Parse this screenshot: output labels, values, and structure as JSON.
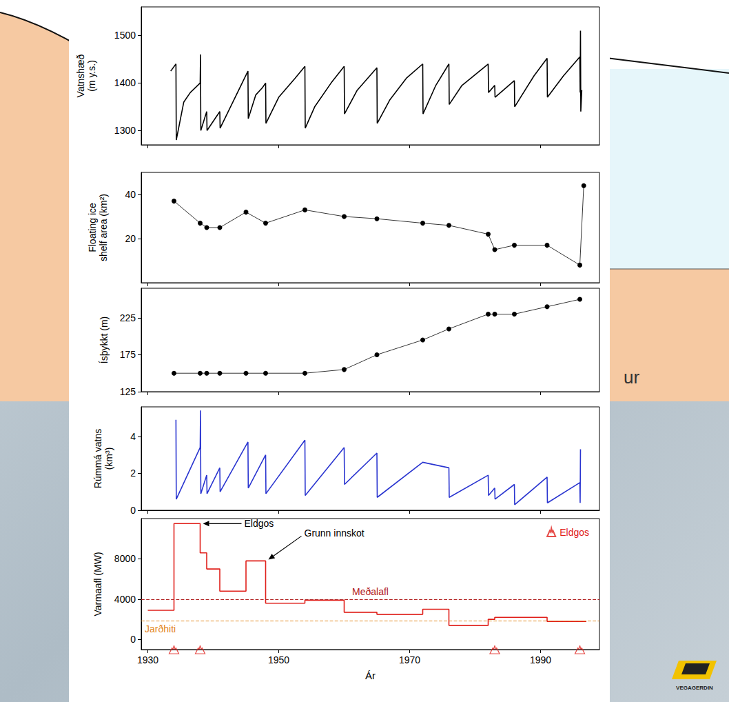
{
  "chart_data": [
    {
      "type": "line",
      "y_label": "Vatnshæð (m y.s.)",
      "xlim": [
        1929,
        1999
      ],
      "xticks": [
        1930,
        1950,
        1970,
        1990
      ],
      "ylim": [
        1270,
        1560
      ],
      "yticks": [
        1300,
        1400,
        1500
      ],
      "grid": false,
      "tick_labels": "y",
      "series": [
        {
          "color": "#000000",
          "marker": "none",
          "x": [
            1933.5,
            1934.3,
            1934.35,
            1935.5,
            1936.5,
            1938.0,
            1938.05,
            1938.1,
            1939.0,
            1939.05,
            1941.0,
            1941.05,
            1945.3,
            1945.35,
            1946.5,
            1947.5,
            1948.0,
            1948.05,
            1950.0,
            1952.5,
            1954.0,
            1954.05,
            1955.5,
            1958,
            1960.0,
            1960.05,
            1962,
            1965.0,
            1965.05,
            1967,
            1969.5,
            1972.0,
            1972.05,
            1974,
            1976.0,
            1976.05,
            1978,
            1982.0,
            1982.05,
            1983.0,
            1983.05,
            1986.0,
            1986.05,
            1989,
            1991.0,
            1991.05,
            1993.5,
            1996.0,
            1996.05,
            1996.1,
            1996.15,
            1996.3
          ],
          "values": [
            1425,
            1440,
            1280,
            1360,
            1380,
            1400,
            1460,
            1300,
            1340,
            1300,
            1340,
            1305,
            1425,
            1325,
            1375,
            1390,
            1400,
            1315,
            1370,
            1410,
            1435,
            1305,
            1350,
            1400,
            1435,
            1335,
            1385,
            1432,
            1315,
            1365,
            1410,
            1440,
            1335,
            1395,
            1440,
            1355,
            1395,
            1440,
            1380,
            1395,
            1370,
            1405,
            1350,
            1415,
            1452,
            1370,
            1415,
            1455,
            1380,
            1510,
            1340,
            1385
          ]
        }
      ]
    },
    {
      "type": "line",
      "y_label": "Floating ice shelf area (km²)",
      "xlim": [
        1929,
        1999
      ],
      "xticks": [
        1930,
        1950,
        1970,
        1990
      ],
      "ylim": [
        0,
        50
      ],
      "yticks": [
        20,
        40
      ],
      "grid": false,
      "tick_labels": "y",
      "series": [
        {
          "color": "#000000",
          "marker": "circle",
          "x": [
            1934,
            1938,
            1939,
            1941,
            1945,
            1948,
            1954,
            1960,
            1965,
            1972,
            1976,
            1982,
            1983,
            1986,
            1991,
            1996,
            1996.6
          ],
          "values": [
            37,
            27,
            25,
            25,
            32,
            27,
            33,
            30,
            29,
            27,
            26,
            22,
            15,
            17,
            17,
            8,
            44
          ]
        }
      ]
    },
    {
      "type": "line",
      "y_label": "Ísþykkt (m)",
      "xlim": [
        1929,
        1999
      ],
      "xticks": [
        1930,
        1950,
        1970,
        1990
      ],
      "ylim": [
        125,
        265
      ],
      "yticks": [
        125,
        175,
        225
      ],
      "grid": false,
      "tick_labels": "y",
      "series": [
        {
          "color": "#000000",
          "marker": "circle",
          "x": [
            1934,
            1938,
            1939,
            1941,
            1945,
            1948,
            1954,
            1960,
            1965,
            1972,
            1976,
            1982,
            1983,
            1986,
            1991,
            1996
          ],
          "values": [
            150,
            150,
            150,
            150,
            150,
            150,
            150,
            155,
            175,
            195,
            210,
            230,
            230,
            230,
            240,
            250
          ]
        }
      ]
    },
    {
      "type": "line",
      "y_label": "Rúmmá vatns (km³)",
      "xlim": [
        1929,
        1999
      ],
      "xticks": [
        1930,
        1950,
        1970,
        1990
      ],
      "ylim": [
        0,
        5.6
      ],
      "yticks": [
        0,
        2,
        4
      ],
      "grid": false,
      "tick_labels": "y",
      "series": [
        {
          "color": "#2a35d0",
          "marker": "none",
          "x": [
            1934.3,
            1934.35,
            1938.0,
            1938.05,
            1938.1,
            1939.0,
            1939.05,
            1941.0,
            1941.05,
            1945.3,
            1945.35,
            1948.0,
            1948.05,
            1954.0,
            1954.05,
            1960.0,
            1960.05,
            1965.0,
            1965.05,
            1972.0,
            1976.0,
            1976.05,
            1982.0,
            1982.05,
            1983.0,
            1983.05,
            1986.0,
            1986.05,
            1991.0,
            1991.05,
            1996.0,
            1996.05,
            1996.1
          ],
          "values": [
            4.9,
            0.6,
            3.4,
            5.4,
            0.9,
            1.9,
            0.9,
            2.3,
            1.0,
            3.7,
            1.2,
            3.0,
            0.9,
            3.8,
            0.8,
            3.4,
            1.4,
            3.1,
            0.7,
            2.6,
            2.3,
            0.7,
            1.9,
            0.8,
            1.2,
            0.6,
            1.4,
            0.3,
            1.8,
            0.4,
            1.5,
            0.4,
            3.3
          ]
        }
      ]
    },
    {
      "type": "line",
      "y_label": "Varmaafl (MW)",
      "x_label": "Ár",
      "xlim": [
        1929,
        1999
      ],
      "xticks": [
        1930,
        1950,
        1970,
        1990
      ],
      "ylim": [
        -1000,
        12000
      ],
      "yticks": [
        0,
        4000,
        8000
      ],
      "grid": false,
      "legend": "upper right",
      "series": [
        {
          "type": "step",
          "color": "#e0201b",
          "marker": "none",
          "x": [
            1930,
            1934,
            1938,
            1939,
            1941,
            1945,
            1948,
            1954,
            1960,
            1965,
            1972,
            1976,
            1982,
            1983,
            1991,
            1997
          ],
          "values": [
            2900,
            11500,
            8600,
            7000,
            4800,
            7800,
            3600,
            3900,
            2700,
            2500,
            3000,
            1400,
            2000,
            2200,
            1800,
            1800
          ]
        },
        {
          "name": "Eldgos",
          "type": "scatter",
          "marker": "volcano",
          "color": "#e0201b",
          "x": [
            1934,
            1938,
            1983,
            1996
          ]
        }
      ],
      "reference_lines": [
        {
          "label": "Meðalafl",
          "value": 3950,
          "color": "#b22222",
          "line_style": "dashed"
        },
        {
          "label": "Jarðhiti",
          "value": 1850,
          "color": "#e3861c",
          "line_style": "dashed"
        }
      ],
      "annotations": [
        {
          "text": "Eldgos",
          "x": 1938,
          "y": 11500
        },
        {
          "text": "Grunn innskot",
          "x": 1948,
          "y": 7800
        }
      ]
    }
  ],
  "page_texts": [
    "ur",
    "VEGAGERDIN"
  ]
}
